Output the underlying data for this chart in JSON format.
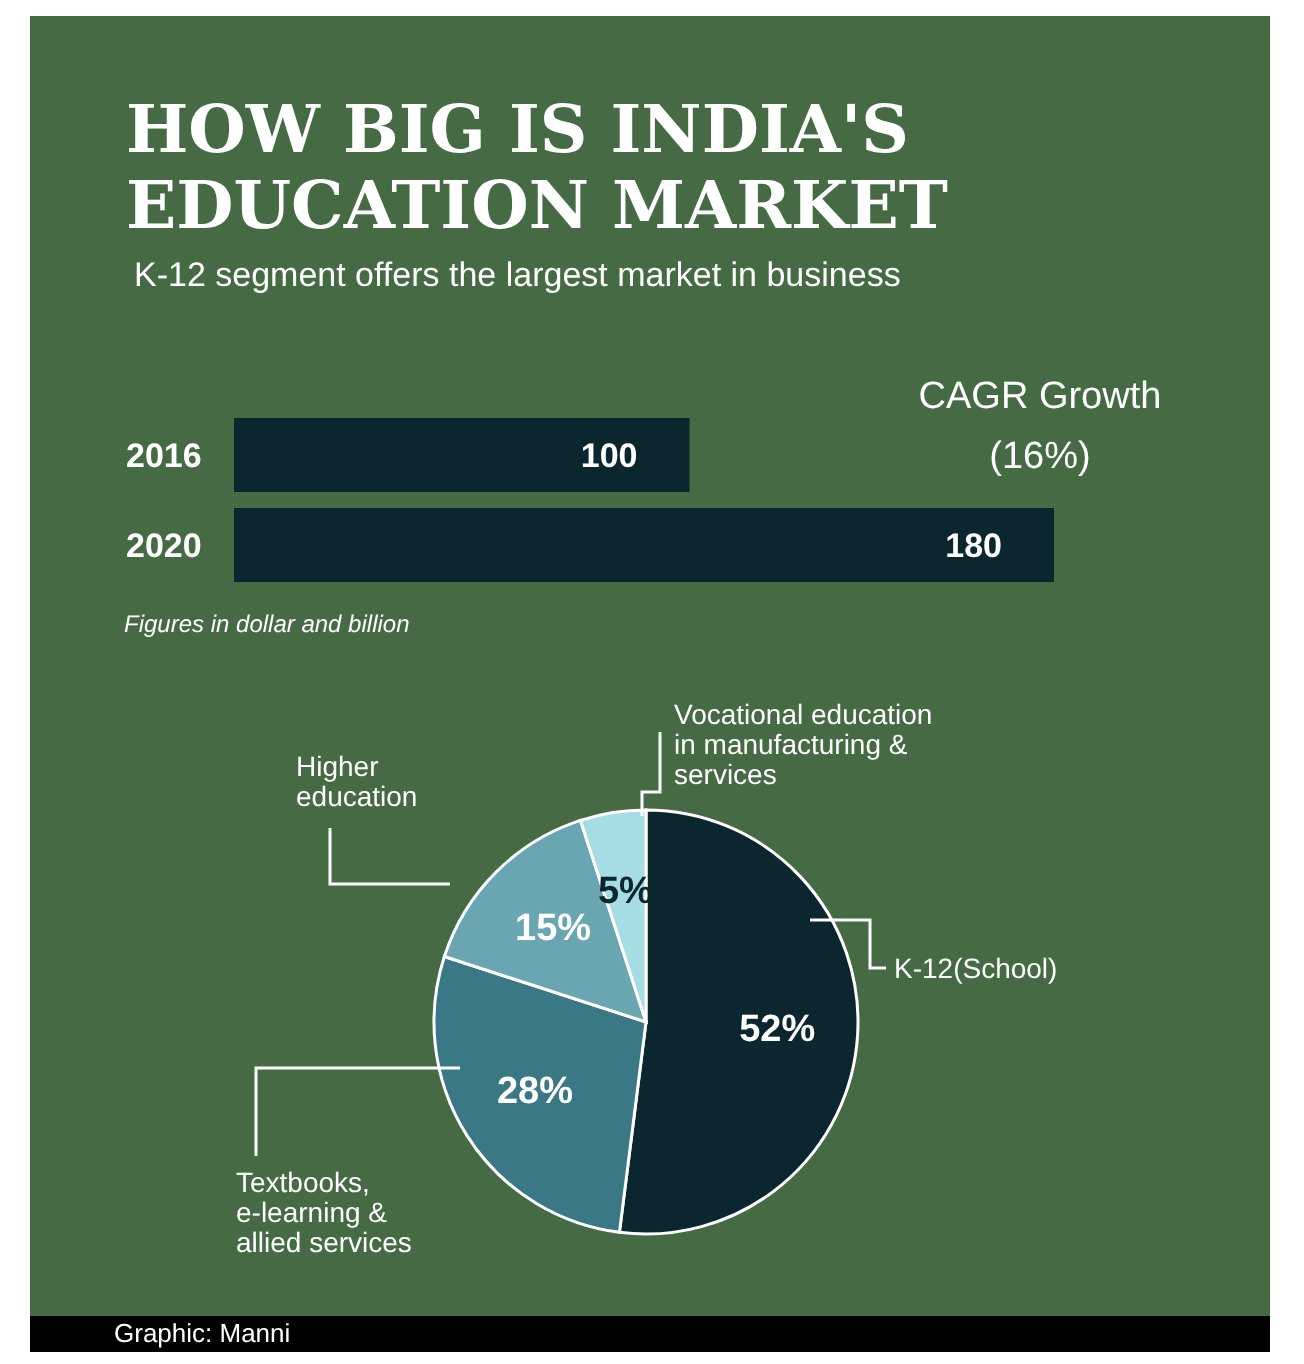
{
  "chart_data": [
    {
      "type": "bar",
      "orientation": "horizontal",
      "title": "HOW BIG IS INDIA'S EDUCATION MARKET",
      "subtitle": "K-12 segment offers the largest market in business",
      "categories": [
        "2016",
        "2020"
      ],
      "values": [
        100,
        180
      ],
      "color": "#0c2630",
      "data_labels": true,
      "annotations": [
        "CAGR Growth (16%)",
        "Figures in dollar and billion"
      ]
    },
    {
      "type": "pie",
      "categories": [
        "K-12(School)",
        "Textbooks, e-learning & allied services",
        "Higher education",
        "Vocational education in manufacturing & services"
      ],
      "values": [
        52,
        28,
        15,
        5
      ],
      "colors": [
        "#0c2630",
        "#3a7886",
        "#69a6b1",
        "#a6dde5"
      ],
      "value_labels": [
        "52%",
        "28%",
        "15%",
        "5%"
      ],
      "annotations": [
        "Graphic: Manni"
      ]
    }
  ]
}
